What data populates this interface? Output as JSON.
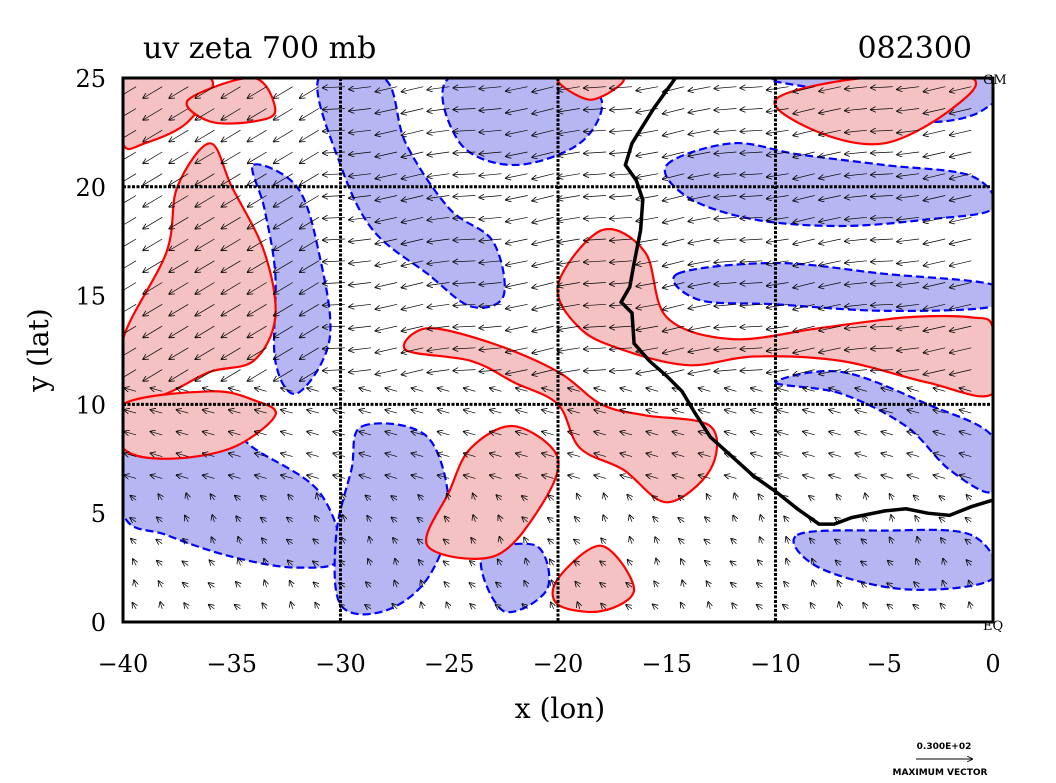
{
  "chart_data": {
    "type": "heatmap",
    "title": "uv zeta 700 mb",
    "time_label": "082300",
    "xlabel": "x (lon)",
    "ylabel": "y (lat)",
    "xlim": [
      -40,
      0
    ],
    "ylim": [
      0,
      25
    ],
    "x_ticks": [
      -40,
      -35,
      -30,
      -25,
      -20,
      -15,
      -10,
      -5,
      0
    ],
    "y_ticks": [
      0,
      5,
      10,
      15,
      20,
      25
    ],
    "grid_lines_x": [
      -30,
      -20,
      -10
    ],
    "grid_lines_y": [
      10,
      20
    ],
    "corner_labels": {
      "top_right": "GM",
      "bottom_right": "EQ"
    },
    "vector_legend": {
      "value": "0.300E+02",
      "label": "MAXIMUM VECTOR"
    },
    "fill_colors": {
      "positive": "#f4c2c2",
      "negative": "#b6b6f2"
    },
    "contour_colors": {
      "positive": "#ff0000",
      "negative": "#0000ff",
      "coastline": "#000000"
    },
    "coastline": [
      [
        -14.6,
        25
      ],
      [
        -15.6,
        23.6
      ],
      [
        -16.6,
        22.0
      ],
      [
        -16.9,
        21.0
      ],
      [
        -16.4,
        20.3
      ],
      [
        -16.1,
        19.4
      ],
      [
        -16.2,
        18.0
      ],
      [
        -16.5,
        16.5
      ],
      [
        -16.7,
        15.4
      ],
      [
        -17.1,
        14.7
      ],
      [
        -16.6,
        14.2
      ],
      [
        -16.5,
        12.8
      ],
      [
        -15.8,
        12.0
      ],
      [
        -15.0,
        11.3
      ],
      [
        -14.3,
        10.6
      ],
      [
        -13.7,
        9.6
      ],
      [
        -13.0,
        8.5
      ],
      [
        -12.0,
        7.6
      ],
      [
        -11.0,
        6.7
      ],
      [
        -10.0,
        6.0
      ],
      [
        -9.0,
        5.2
      ],
      [
        -8.0,
        4.5
      ],
      [
        -7.3,
        4.5
      ],
      [
        -6.5,
        4.8
      ],
      [
        -5.0,
        5.1
      ],
      [
        -4.0,
        5.2
      ],
      [
        -3.0,
        5.0
      ],
      [
        -2.0,
        4.9
      ],
      [
        -1.0,
        5.3
      ],
      [
        0,
        5.6
      ]
    ],
    "positive_regions": [
      [
        [
          -40,
          25
        ],
        [
          -36,
          25
        ],
        [
          -37,
          23
        ],
        [
          -39,
          22
        ],
        [
          -40,
          22
        ]
      ],
      [
        [
          -40,
          13
        ],
        [
          -38,
          17
        ],
        [
          -37.5,
          20
        ],
        [
          -36,
          22
        ],
        [
          -35,
          20
        ],
        [
          -33.5,
          17
        ],
        [
          -33,
          14
        ],
        [
          -34,
          12
        ],
        [
          -36,
          11.5
        ],
        [
          -38,
          10.5
        ],
        [
          -40,
          10
        ]
      ],
      [
        [
          -37,
          24
        ],
        [
          -34,
          25
        ],
        [
          -33,
          23.5
        ],
        [
          -34,
          23
        ],
        [
          -36,
          23
        ]
      ],
      [
        [
          -40,
          10
        ],
        [
          -36,
          10.6
        ],
        [
          -34,
          10.2
        ],
        [
          -33,
          9.5
        ],
        [
          -35,
          8
        ],
        [
          -38,
          7.5
        ],
        [
          -40,
          8
        ]
      ],
      [
        [
          -27,
          12.5
        ],
        [
          -24,
          12
        ],
        [
          -22,
          11
        ],
        [
          -20,
          10
        ],
        [
          -19,
          8
        ],
        [
          -17,
          7
        ],
        [
          -15,
          5.5
        ],
        [
          -13,
          7
        ],
        [
          -13,
          9
        ],
        [
          -16,
          9.5
        ],
        [
          -18,
          10
        ],
        [
          -20,
          11.5
        ],
        [
          -23,
          12.8
        ],
        [
          -26,
          13.5
        ]
      ],
      [
        [
          -24,
          8
        ],
        [
          -22,
          9
        ],
        [
          -20,
          7.5
        ],
        [
          -21,
          5
        ],
        [
          -23,
          3
        ],
        [
          -26,
          3.5
        ],
        [
          -25,
          6
        ]
      ],
      [
        [
          -20,
          15.5
        ],
        [
          -18,
          18
        ],
        [
          -16,
          17
        ],
        [
          -15,
          14
        ],
        [
          -12,
          13
        ],
        [
          -8,
          13.5
        ],
        [
          -4,
          14
        ],
        [
          -1,
          14
        ],
        [
          0,
          13.5
        ],
        [
          0,
          10.5
        ],
        [
          -3,
          11
        ],
        [
          -7,
          12
        ],
        [
          -11,
          12.2
        ],
        [
          -14,
          11.8
        ],
        [
          -17,
          12.5
        ],
        [
          -19,
          13.5
        ]
      ],
      [
        [
          -10,
          24
        ],
        [
          -6,
          25
        ],
        [
          -1,
          25
        ],
        [
          -2,
          23.5
        ],
        [
          -5,
          22
        ],
        [
          -8,
          22.5
        ]
      ],
      [
        [
          -20,
          2
        ],
        [
          -18,
          3.5
        ],
        [
          -16.5,
          1.5
        ],
        [
          -18,
          0.5
        ],
        [
          -20,
          0.8
        ]
      ],
      [
        [
          -20,
          25
        ],
        [
          -18.5,
          24
        ],
        [
          -17,
          25
        ]
      ]
    ],
    "negative_regions": [
      [
        [
          -31,
          25
        ],
        [
          -28,
          25
        ],
        [
          -27,
          22
        ],
        [
          -25,
          19
        ],
        [
          -23,
          17.5
        ],
        [
          -22.5,
          15
        ],
        [
          -24,
          14.5
        ],
        [
          -26,
          16
        ],
        [
          -28.5,
          18
        ],
        [
          -30,
          21
        ]
      ],
      [
        [
          -34,
          21
        ],
        [
          -32,
          20
        ],
        [
          -31,
          17
        ],
        [
          -30.5,
          13
        ],
        [
          -32,
          10.5
        ],
        [
          -33,
          12
        ],
        [
          -33,
          16
        ],
        [
          -33.5,
          19
        ]
      ],
      [
        [
          -40,
          9.8
        ],
        [
          -36,
          9.6
        ],
        [
          -34,
          8
        ],
        [
          -31,
          6
        ],
        [
          -30,
          3
        ],
        [
          -32,
          2.5
        ],
        [
          -35,
          3
        ],
        [
          -38,
          4
        ],
        [
          -40,
          5
        ]
      ],
      [
        [
          -29,
          9
        ],
        [
          -26,
          8.5
        ],
        [
          -25,
          5
        ],
        [
          -26,
          2
        ],
        [
          -28,
          0.5
        ],
        [
          -30,
          0.8
        ],
        [
          -30.2,
          4
        ],
        [
          -29.5,
          7
        ]
      ],
      [
        [
          -25,
          25
        ],
        [
          -20,
          25
        ],
        [
          -18,
          24
        ],
        [
          -19,
          22
        ],
        [
          -22,
          21
        ],
        [
          -24.5,
          22
        ]
      ],
      [
        [
          -15,
          21
        ],
        [
          -12,
          22
        ],
        [
          -9,
          21.5
        ],
        [
          -5,
          21
        ],
        [
          -1,
          20.5
        ],
        [
          0,
          19
        ],
        [
          -3,
          18.5
        ],
        [
          -7,
          18.2
        ],
        [
          -11,
          18.5
        ],
        [
          -14,
          19.5
        ]
      ],
      [
        [
          -14.5,
          16
        ],
        [
          -10,
          16.5
        ],
        [
          -5,
          16
        ],
        [
          0,
          15.5
        ],
        [
          0,
          14.5
        ],
        [
          -5,
          14.3
        ],
        [
          -10,
          14.6
        ],
        [
          -13.5,
          14.8
        ]
      ],
      [
        [
          -10,
          11
        ],
        [
          -7,
          10.5
        ],
        [
          -4,
          9
        ],
        [
          -2,
          7
        ],
        [
          0,
          6
        ],
        [
          0,
          8.5
        ],
        [
          -3,
          10
        ],
        [
          -7,
          11.5
        ]
      ],
      [
        [
          -9,
          4
        ],
        [
          -5,
          4.2
        ],
        [
          -1,
          4
        ],
        [
          0,
          2
        ],
        [
          -4,
          1.5
        ],
        [
          -8,
          2.5
        ]
      ],
      [
        [
          -23.5,
          3
        ],
        [
          -21,
          3.5
        ],
        [
          -20.5,
          1.5
        ],
        [
          -22.5,
          0.5
        ]
      ],
      [
        [
          -9.8,
          25
        ],
        [
          -8,
          24.5
        ],
        [
          -5,
          24
        ],
        [
          -3,
          23
        ],
        [
          -0.5,
          23.5
        ],
        [
          0,
          25
        ]
      ]
    ],
    "wind_vectors_note": "sampled easterly/trade wind field"
  }
}
